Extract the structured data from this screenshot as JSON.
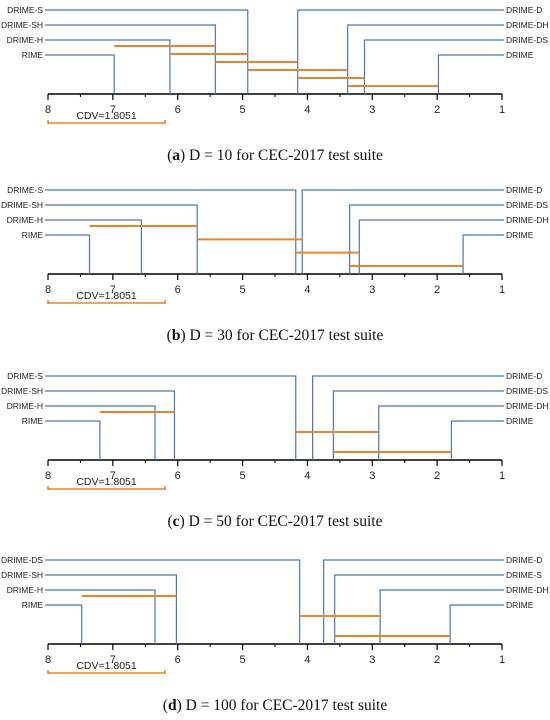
{
  "colors": {
    "bracket": "#4a78b0",
    "clique": "#e8862e",
    "axis": "#000000",
    "text": "#222222"
  },
  "chart_data": [
    {
      "type": "critical-difference",
      "caption": {
        "letter": "a",
        "text": "D = 10 for CEC-2017 test suite"
      },
      "cd_label": "CDV=1.8051",
      "cd_value": 1.8051,
      "x_ticks": [
        "8",
        "7",
        "6",
        "5",
        "4",
        "3",
        "2",
        "1"
      ],
      "xlim": [
        8,
        1
      ],
      "left_algorithms": [
        {
          "name": "DRIME-S",
          "rank": 4.92
        },
        {
          "name": "DRIME-SH",
          "rank": 5.42
        },
        {
          "name": "DRIME-H",
          "rank": 6.12
        },
        {
          "name": "RIME",
          "rank": 6.98
        }
      ],
      "right_algorithms": [
        {
          "name": "DRIME-D",
          "rank": 4.15
        },
        {
          "name": "DRIME-DH",
          "rank": 3.38
        },
        {
          "name": "DRIME-DS",
          "rank": 3.12
        },
        {
          "name": "DRIME",
          "rank": 1.98
        }
      ],
      "cliques": [
        [
          6.98,
          5.42
        ],
        [
          6.12,
          4.92
        ],
        [
          5.42,
          4.15
        ],
        [
          4.92,
          3.38
        ],
        [
          4.15,
          3.12
        ],
        [
          3.38,
          1.98
        ]
      ]
    },
    {
      "type": "critical-difference",
      "caption": {
        "letter": "b",
        "text": "D = 30 for CEC-2017 test suite"
      },
      "cd_label": "CDV=1.8051",
      "cd_value": 1.8051,
      "x_ticks": [
        "8",
        "7",
        "6",
        "5",
        "4",
        "3",
        "2",
        "1"
      ],
      "xlim": [
        8,
        1
      ],
      "left_algorithms": [
        {
          "name": "DRIME-S",
          "rank": 4.18
        },
        {
          "name": "DRIME-SH",
          "rank": 5.7
        },
        {
          "name": "DRIME-H",
          "rank": 6.56
        },
        {
          "name": "RIME",
          "rank": 7.36
        }
      ],
      "right_algorithms": [
        {
          "name": "DRIME-D",
          "rank": 4.08
        },
        {
          "name": "DRIME-DS",
          "rank": 3.35
        },
        {
          "name": "DRIME-DH",
          "rank": 3.2
        },
        {
          "name": "DRIME",
          "rank": 1.6
        }
      ],
      "cliques": [
        [
          7.36,
          5.7
        ],
        [
          5.7,
          4.08
        ],
        [
          4.18,
          3.2
        ],
        [
          3.35,
          1.6
        ]
      ]
    },
    {
      "type": "critical-difference",
      "caption": {
        "letter": "c",
        "text": "D = 50 for CEC-2017 test suite"
      },
      "cd_label": "CDV=1.8051",
      "cd_value": 1.8051,
      "x_ticks": [
        "8",
        "7",
        "6",
        "5",
        "4",
        "3",
        "2",
        "1"
      ],
      "xlim": [
        8,
        1
      ],
      "left_algorithms": [
        {
          "name": "DRIME-S",
          "rank": 4.18
        },
        {
          "name": "DRIME-SH",
          "rank": 6.05
        },
        {
          "name": "DRIME-H",
          "rank": 6.35
        },
        {
          "name": "RIME",
          "rank": 7.2
        }
      ],
      "right_algorithms": [
        {
          "name": "DRIME-D",
          "rank": 3.92
        },
        {
          "name": "DRIME-DS",
          "rank": 3.6
        },
        {
          "name": "DRIME-DH",
          "rank": 2.9
        },
        {
          "name": "DRIME",
          "rank": 1.78
        }
      ],
      "cliques": [
        [
          7.2,
          6.05
        ],
        [
          4.18,
          2.9
        ],
        [
          3.6,
          1.78
        ]
      ]
    },
    {
      "type": "critical-difference",
      "caption": {
        "letter": "d",
        "text": "D = 100 for CEC-2017 test suite"
      },
      "cd_label": "CDV=1.8051",
      "cd_value": 1.8051,
      "x_ticks": [
        "8",
        "7",
        "6",
        "5",
        "4",
        "3",
        "2",
        "1"
      ],
      "xlim": [
        8,
        1
      ],
      "left_algorithms": [
        {
          "name": "DRIME-DS",
          "rank": 4.12
        },
        {
          "name": "DRIME-SH",
          "rank": 6.02
        },
        {
          "name": "DRIME-H",
          "rank": 6.35
        },
        {
          "name": "RIME",
          "rank": 7.48
        }
      ],
      "right_algorithms": [
        {
          "name": "DRIME-D",
          "rank": 3.75
        },
        {
          "name": "DRIME-S",
          "rank": 3.58
        },
        {
          "name": "DRIME-DH",
          "rank": 2.88
        },
        {
          "name": "DRIME",
          "rank": 1.8
        }
      ],
      "cliques": [
        [
          7.48,
          6.02
        ],
        [
          4.12,
          2.88
        ],
        [
          3.58,
          1.8
        ]
      ]
    }
  ]
}
